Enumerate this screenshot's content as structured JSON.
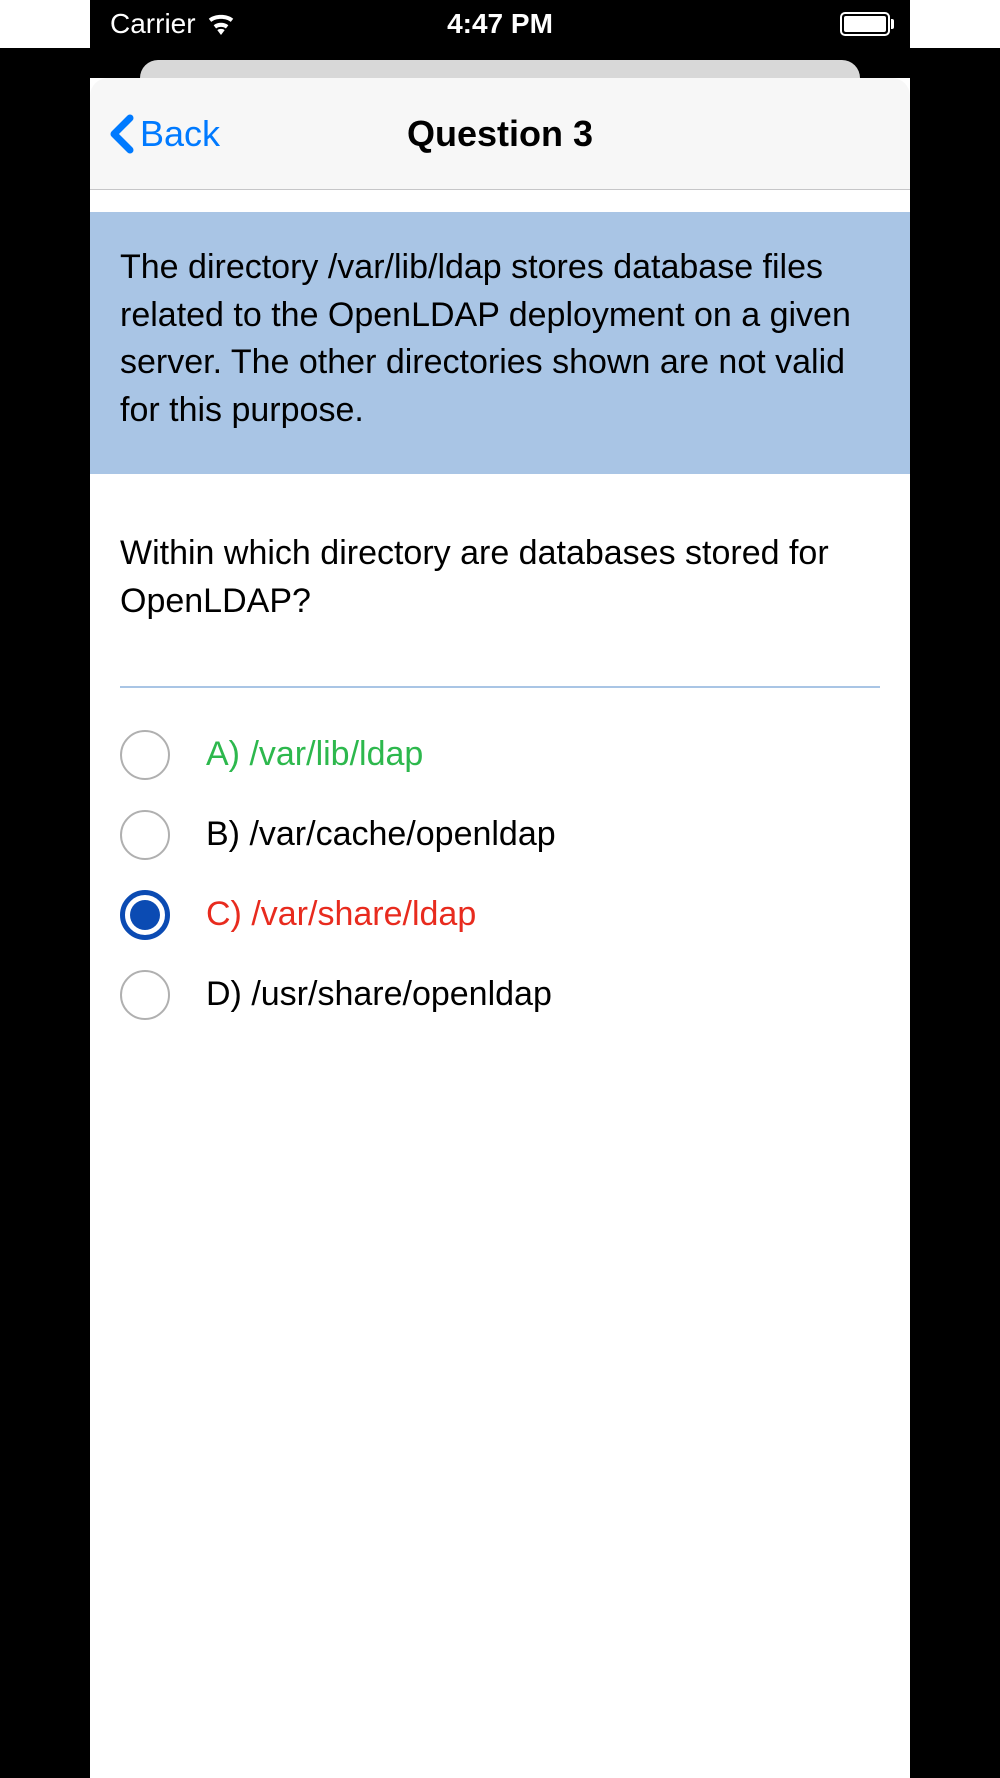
{
  "statusBar": {
    "carrier": "Carrier",
    "time": "4:47 PM"
  },
  "nav": {
    "backLabel": "Back",
    "title": "Question 3"
  },
  "explanation": {
    "text": "The directory /var/lib/ldap stores database files related to the OpenLDAP deployment on a given server. The other directories shown are not valid for this purpose."
  },
  "question": {
    "text": "Within which directory are databases stored for OpenLDAP?"
  },
  "answers": [
    {
      "label": "A) /var/lib/ldap",
      "state": "correct",
      "selected": false
    },
    {
      "label": "B) /var/cache/openldap",
      "state": "normal",
      "selected": false
    },
    {
      "label": "C) /var/share/ldap",
      "state": "incorrect",
      "selected": true
    },
    {
      "label": "D) /usr/share/openldap",
      "state": "normal",
      "selected": false
    }
  ],
  "colors": {
    "explanationBg": "#a9c5e5",
    "correctText": "#2db84d",
    "incorrectText": "#e82b1e",
    "linkBlue": "#007aff",
    "radioSelected": "#0b4bb3"
  }
}
